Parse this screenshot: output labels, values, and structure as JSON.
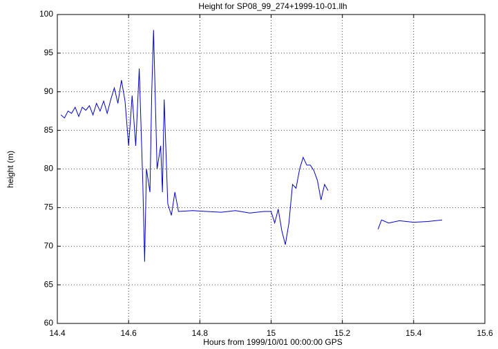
{
  "chart_data": {
    "type": "line",
    "title": "Height for SP08_99_274+1999-10-01.llh",
    "x_label": "Hours from 1999/10/01 00:00:00 GPS",
    "y_label": "height (m)",
    "xlim": [
      14.4,
      15.6
    ],
    "xticks": [
      14.4,
      14.6,
      14.8,
      15,
      15.2,
      15.4,
      15.6
    ],
    "ylim": [
      60,
      100
    ],
    "yticks": [
      60,
      65,
      70,
      75,
      80,
      85,
      90,
      95,
      100
    ],
    "grid": true,
    "series": [
      {
        "name": "height",
        "color": "#0000cc",
        "x": [
          14.41,
          14.42,
          14.43,
          14.44,
          14.45,
          14.46,
          14.47,
          14.48,
          14.49,
          14.5,
          14.51,
          14.52,
          14.53,
          14.54,
          14.55,
          14.56,
          14.57,
          14.58,
          14.59,
          14.6,
          14.61,
          14.62,
          14.63,
          14.64,
          14.645,
          14.65,
          14.66,
          14.665,
          14.67,
          14.68,
          14.69,
          14.695,
          14.7,
          14.71,
          14.72,
          14.73,
          14.74,
          14.78,
          14.82,
          14.86,
          14.9,
          14.94,
          14.98,
          15.0,
          15.01,
          15.02,
          15.03,
          15.04,
          15.05,
          15.06,
          15.07,
          15.08,
          15.09,
          15.1,
          15.11,
          15.12,
          15.13,
          15.14,
          15.15,
          15.16,
          15.22,
          15.3,
          15.31,
          15.33,
          15.36,
          15.4,
          15.44,
          15.48
        ],
        "values": [
          87,
          86.6,
          87.5,
          87.2,
          88,
          86.8,
          88,
          87.6,
          88.2,
          87,
          88.5,
          87.5,
          88.8,
          87.2,
          89,
          90.5,
          88.5,
          91.5,
          88.8,
          83,
          89.5,
          83,
          93,
          78,
          68,
          80,
          77,
          90,
          98,
          80,
          83,
          77,
          89,
          75.5,
          74,
          77,
          74.5,
          74.6,
          74.5,
          74.4,
          74.6,
          74.3,
          74.5,
          74.5,
          73,
          74.8,
          72,
          70.2,
          73,
          78,
          77.5,
          80,
          81.5,
          80.5,
          80.5,
          79.8,
          78.5,
          76,
          78,
          77.2,
          null,
          72.2,
          73.4,
          73,
          73.3,
          73.1,
          73.2,
          73.4
        ]
      }
    ]
  }
}
